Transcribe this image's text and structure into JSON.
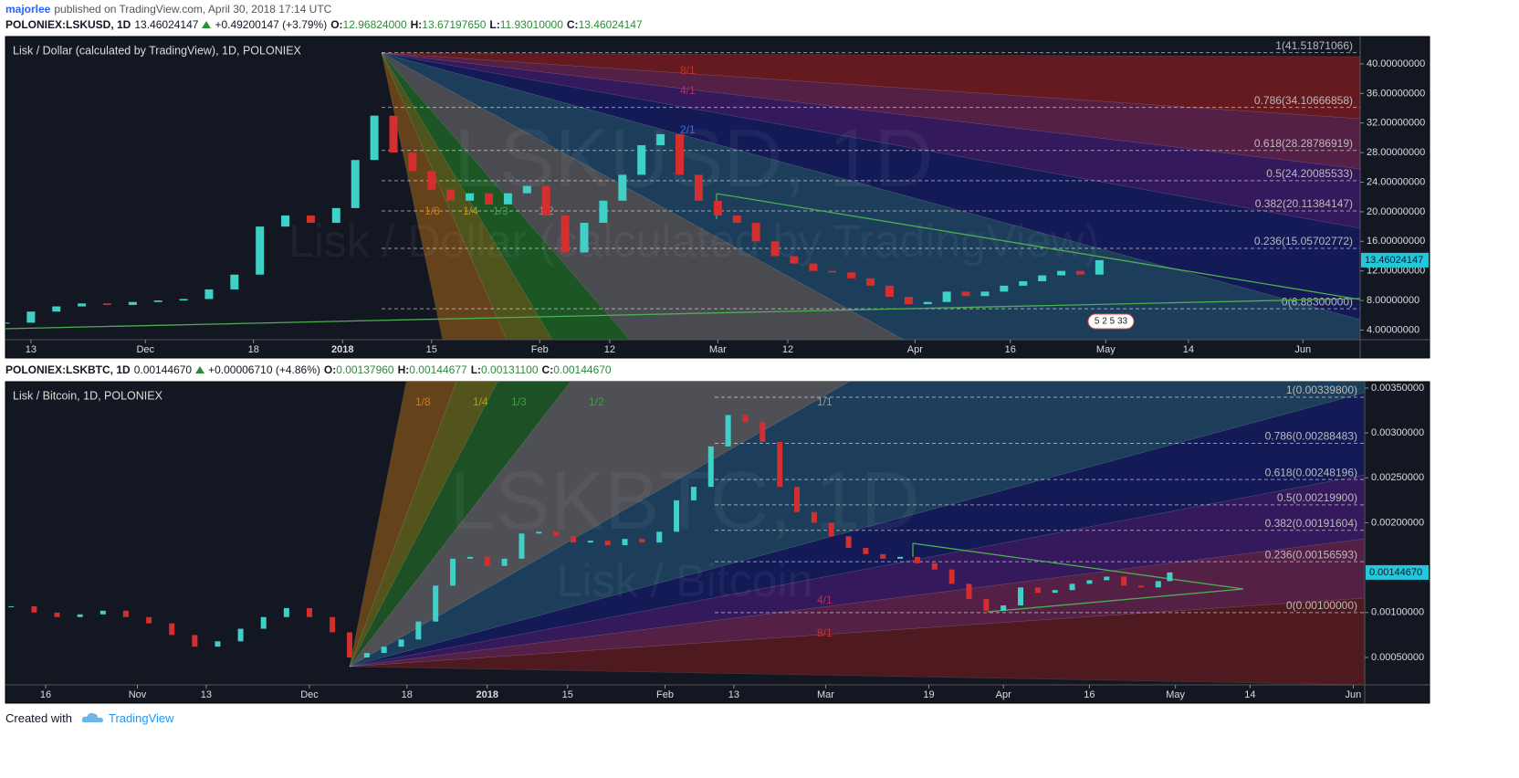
{
  "header": {
    "author": "majorlee",
    "published": "published on TradingView.com, April 30, 2018 17:14 UTC"
  },
  "footer": {
    "created": "Created with",
    "brand": "TradingView"
  },
  "chart_data": [
    {
      "type": "candlestick",
      "ticker": "POLONIEX:LSKUSD, 1D",
      "last": "13.46024147",
      "change": "+0.49200147 (+3.79%)",
      "ohlc": [
        {
          "label": "O:",
          "value": "12.96824000"
        },
        {
          "label": "H:",
          "value": "13.67197650"
        },
        {
          "label": "L:",
          "value": "11.93010000"
        },
        {
          "label": "C:",
          "value": "13.46024147"
        }
      ],
      "title": "Lisk / Dollar (calculated by TradingView), 1D, POLONIEX",
      "watermark": [
        "LSKUSD, 1D",
        "Lisk / Dollar (calculated by TradingView)"
      ],
      "events": "5 2 5 33",
      "up_color": "#3fd1c8",
      "down_color": "#d32f2f",
      "x": [
        "2017-11-09",
        "2017-11-13",
        "2017-11-17",
        "2017-11-21",
        "2017-11-25",
        "2017-11-29",
        "2017-12-03",
        "2017-12-07",
        "2017-12-11",
        "2017-12-15",
        "2017-12-19",
        "2017-12-23",
        "2017-12-27",
        "2017-12-31",
        "2018-01-03",
        "2018-01-06",
        "2018-01-09",
        "2018-01-12",
        "2018-01-15",
        "2018-01-18",
        "2018-01-21",
        "2018-01-24",
        "2018-01-27",
        "2018-01-30",
        "2018-02-02",
        "2018-02-05",
        "2018-02-08",
        "2018-02-11",
        "2018-02-14",
        "2018-02-17",
        "2018-02-20",
        "2018-02-23",
        "2018-02-26",
        "2018-03-01",
        "2018-03-04",
        "2018-03-07",
        "2018-03-10",
        "2018-03-13",
        "2018-03-16",
        "2018-03-19",
        "2018-03-22",
        "2018-03-25",
        "2018-03-28",
        "2018-03-31",
        "2018-04-03",
        "2018-04-06",
        "2018-04-09",
        "2018-04-12",
        "2018-04-15",
        "2018-04-18",
        "2018-04-21",
        "2018-04-24",
        "2018-04-27",
        "2018-04-30"
      ],
      "close": [
        5.0,
        6.5,
        7.2,
        7.6,
        7.4,
        7.8,
        8.0,
        8.2,
        9.5,
        11.5,
        18.0,
        19.5,
        18.5,
        20.5,
        27.0,
        33.0,
        28.0,
        25.5,
        23.0,
        21.5,
        22.5,
        21.0,
        22.5,
        23.5,
        19.5,
        14.5,
        18.5,
        21.5,
        25.0,
        29.0,
        30.5,
        25.0,
        21.5,
        19.5,
        18.5,
        16.0,
        14.0,
        13.0,
        12.0,
        11.8,
        11.0,
        10.0,
        8.5,
        7.5,
        7.8,
        9.2,
        8.6,
        9.2,
        10.0,
        10.6,
        11.4,
        12.0,
        11.5,
        13.46024147
      ],
      "xlim": [
        "2017-11-09",
        "2018-06-10"
      ],
      "xticks": [
        {
          "value": "2017-11-13",
          "label": "13"
        },
        {
          "value": "2017-12-01",
          "label": "Dec"
        },
        {
          "value": "2017-12-18",
          "label": "18"
        },
        {
          "value": "2018-01-01",
          "label": "2018"
        },
        {
          "value": "2018-01-15",
          "label": "15"
        },
        {
          "value": "2018-02-01",
          "label": "Feb"
        },
        {
          "value": "2018-02-12",
          "label": "12"
        },
        {
          "value": "2018-03-01",
          "label": "Mar"
        },
        {
          "value": "2018-03-12",
          "label": "12"
        },
        {
          "value": "2018-04-01",
          "label": "Apr"
        },
        {
          "value": "2018-04-16",
          "label": "16"
        },
        {
          "value": "2018-05-01",
          "label": "May"
        },
        {
          "value": "2018-05-14",
          "label": "14"
        },
        {
          "value": "2018-06-01",
          "label": "Jun"
        }
      ],
      "ylim": [
        2.7,
        43.7
      ],
      "yticks": [
        {
          "value": 4,
          "label": "4.00000000"
        },
        {
          "value": 8,
          "label": "8.00000000"
        },
        {
          "value": 12,
          "label": "12.00000000"
        },
        {
          "value": 16,
          "label": "16.00000000"
        },
        {
          "value": 20,
          "label": "20.00000000"
        },
        {
          "value": 24,
          "label": "24.00000000"
        },
        {
          "value": 28,
          "label": "28.00000000"
        },
        {
          "value": 32,
          "label": "32.00000000"
        },
        {
          "value": 36,
          "label": "36.00000000"
        },
        {
          "value": 40,
          "label": "40.00000000"
        }
      ],
      "last_price": 13.46024147,
      "fib_levels": [
        {
          "value": 41.51871066,
          "label": "1(41.51871066)"
        },
        {
          "value": 34.10666858,
          "label": "0.786(34.10666858)"
        },
        {
          "value": 28.28786919,
          "label": "0.618(28.28786919)"
        },
        {
          "value": 24.20085533,
          "label": "0.5(24.20085533)"
        },
        {
          "value": 20.11384147,
          "label": "0.382(20.11384147)"
        },
        {
          "value": 15.05702772,
          "label": "0.236(15.05702772)"
        },
        {
          "value": 6.883,
          "label": "0(6.88300000)"
        }
      ],
      "fan_labels": [
        "8/1",
        "4/1",
        "2/1",
        "1/8",
        "1/4",
        "1/3",
        "1/2"
      ]
    },
    {
      "type": "candlestick",
      "ticker": "POLONIEX:LSKBTC, 1D",
      "last": "0.00144670",
      "change": "+0.00006710 (+4.86%)",
      "ohlc": [
        {
          "label": "O:",
          "value": "0.00137960"
        },
        {
          "label": "H:",
          "value": "0.00144677"
        },
        {
          "label": "L:",
          "value": "0.00131100"
        },
        {
          "label": "C:",
          "value": "0.00144670"
        }
      ],
      "title": "Lisk / Bitcoin, 1D, POLONIEX",
      "watermark": [
        "LSKBTC, 1D",
        "Lisk / Bitcoin"
      ],
      "up_color": "#3fd1c8",
      "down_color": "#d32f2f",
      "x": [
        "2017-10-10",
        "2017-10-14",
        "2017-10-18",
        "2017-10-22",
        "2017-10-26",
        "2017-10-30",
        "2017-11-03",
        "2017-11-07",
        "2017-11-11",
        "2017-11-15",
        "2017-11-19",
        "2017-11-23",
        "2017-11-27",
        "2017-12-01",
        "2017-12-05",
        "2017-12-08",
        "2017-12-11",
        "2017-12-14",
        "2017-12-17",
        "2017-12-20",
        "2017-12-23",
        "2017-12-26",
        "2017-12-29",
        "2018-01-01",
        "2018-01-04",
        "2018-01-07",
        "2018-01-10",
        "2018-01-13",
        "2018-01-16",
        "2018-01-19",
        "2018-01-22",
        "2018-01-25",
        "2018-01-28",
        "2018-01-31",
        "2018-02-03",
        "2018-02-06",
        "2018-02-09",
        "2018-02-12",
        "2018-02-15",
        "2018-02-18",
        "2018-02-21",
        "2018-02-24",
        "2018-02-27",
        "2018-03-02",
        "2018-03-05",
        "2018-03-08",
        "2018-03-11",
        "2018-03-14",
        "2018-03-17",
        "2018-03-20",
        "2018-03-23",
        "2018-03-26",
        "2018-03-29",
        "2018-04-01",
        "2018-04-04",
        "2018-04-07",
        "2018-04-10",
        "2018-04-13",
        "2018-04-16",
        "2018-04-19",
        "2018-04-22",
        "2018-04-25",
        "2018-04-28",
        "2018-04-30"
      ],
      "close": [
        0.00107,
        0.001,
        0.00095,
        0.00098,
        0.00102,
        0.00095,
        0.00088,
        0.00075,
        0.00062,
        0.00068,
        0.00082,
        0.00095,
        0.00105,
        0.00095,
        0.00078,
        0.0005,
        0.00055,
        0.00062,
        0.0007,
        0.0009,
        0.0013,
        0.0016,
        0.00162,
        0.00152,
        0.0016,
        0.00188,
        0.0019,
        0.00185,
        0.00178,
        0.0018,
        0.00175,
        0.00182,
        0.00178,
        0.0019,
        0.00225,
        0.0024,
        0.00285,
        0.0032,
        0.00312,
        0.0029,
        0.0024,
        0.00212,
        0.002,
        0.00185,
        0.00172,
        0.00165,
        0.0016,
        0.00162,
        0.00155,
        0.00148,
        0.00132,
        0.00115,
        0.00102,
        0.00108,
        0.00128,
        0.00122,
        0.00125,
        0.00132,
        0.00136,
        0.0014,
        0.0013,
        0.00128,
        0.00135,
        0.0014467
      ],
      "xlim": [
        "2017-10-09",
        "2018-06-03"
      ],
      "xticks": [
        {
          "value": "2017-10-16",
          "label": "16"
        },
        {
          "value": "2017-11-01",
          "label": "Nov"
        },
        {
          "value": "2017-11-13",
          "label": "13"
        },
        {
          "value": "2017-12-01",
          "label": "Dec"
        },
        {
          "value": "2017-12-18",
          "label": "18"
        },
        {
          "value": "2018-01-01",
          "label": "2018"
        },
        {
          "value": "2018-01-15",
          "label": "15"
        },
        {
          "value": "2018-02-01",
          "label": "Feb"
        },
        {
          "value": "2018-02-13",
          "label": "13"
        },
        {
          "value": "2018-03-01",
          "label": "Mar"
        },
        {
          "value": "2018-03-19",
          "label": "19"
        },
        {
          "value": "2018-04-01",
          "label": "Apr"
        },
        {
          "value": "2018-04-16",
          "label": "16"
        },
        {
          "value": "2018-05-01",
          "label": "May"
        },
        {
          "value": "2018-05-14",
          "label": "14"
        },
        {
          "value": "2018-06-01",
          "label": "Jun"
        }
      ],
      "ylim": [
        0.000195,
        0.003571
      ],
      "yticks": [
        {
          "value": 0.0005,
          "label": "0.00050000"
        },
        {
          "value": 0.001,
          "label": "0.00100000"
        },
        {
          "value": 0.002,
          "label": "0.00200000"
        },
        {
          "value": 0.0025,
          "label": "0.00250000"
        },
        {
          "value": 0.003,
          "label": "0.00300000"
        },
        {
          "value": 0.0035,
          "label": "0.00350000"
        }
      ],
      "last_price": {
        "value": 0.0014467,
        "label": "0.00144670"
      },
      "fib_levels": [
        {
          "value": 0.003398,
          "label": "1(0.00339800)"
        },
        {
          "value": 0.00288483,
          "label": "0.786(0.00288483)"
        },
        {
          "value": 0.00248196,
          "label": "0.618(0.00248196)"
        },
        {
          "value": 0.002199,
          "label": "0.5(0.00219900)"
        },
        {
          "value": 0.00191604,
          "label": "0.382(0.00191604)"
        },
        {
          "value": 0.00156593,
          "label": "0.236(0.00156593)"
        },
        {
          "value": 0.001,
          "label": "0(0.00100000)"
        }
      ],
      "fan_labels": [
        "1/8",
        "1/4",
        "1/3",
        "1/2",
        "1/1",
        "4/1",
        "8/1"
      ]
    }
  ]
}
